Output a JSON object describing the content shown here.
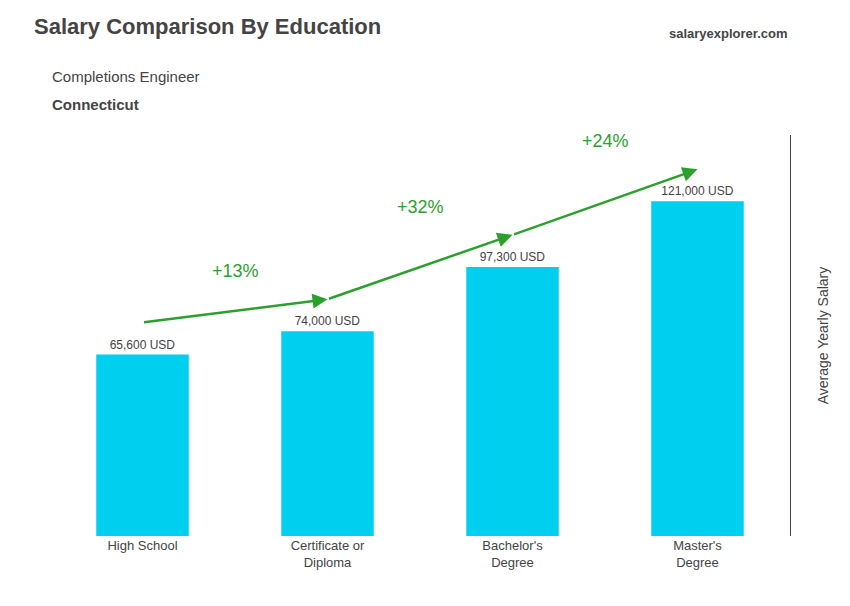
{
  "chart_data": {
    "type": "bar",
    "title": "Salary Comparison By Education",
    "subtitle": "Completions Engineer",
    "ylabel": "Average Yearly Salary",
    "categories": [
      "High School",
      "Certificate or\nDiploma",
      "Bachelor's\nDegree",
      "Master's\nDegree"
    ],
    "values": [
      65600,
      74000,
      97300,
      121000
    ],
    "value_labels": [
      "65,600 USD",
      "74,000 USD",
      "97,300 USD",
      "121,000 USD"
    ],
    "data_labels": true,
    "color": "#00CFEF",
    "ylim": [
      0,
      145000
    ],
    "tick_labels": false,
    "grid": false,
    "annotations": [
      {
        "text": "Connecticut"
      },
      {
        "text": "salaryexplorer.com"
      },
      {
        "text": "+13%",
        "from": "High School",
        "to": "Certificate or\nDiploma"
      },
      {
        "text": "+32%",
        "from": "Certificate or\nDiploma",
        "to": "Bachelor's\nDegree"
      },
      {
        "text": "+24%",
        "from": "Bachelor's\nDegree",
        "to": "Master's\nDegree"
      }
    ]
  }
}
